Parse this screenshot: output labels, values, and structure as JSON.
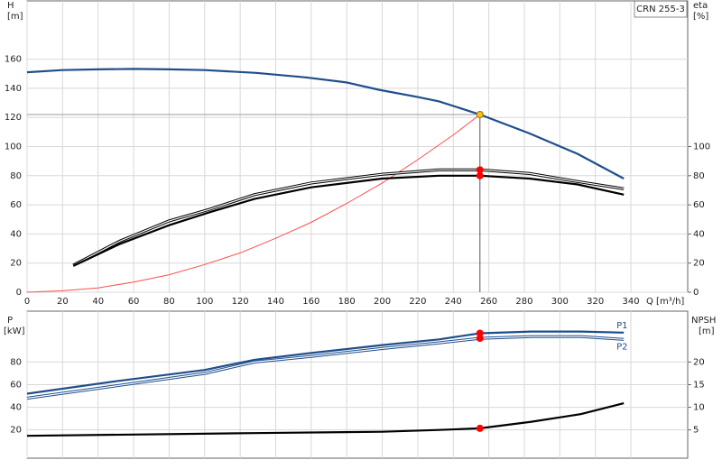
{
  "chart_data": [
    {
      "type": "line",
      "annotation": "CRN 255-3",
      "ylabel": [
        "H",
        "[m]"
      ],
      "y2label": [
        "eta",
        "[%]"
      ],
      "xlabel": "Q [m³/h]",
      "xlim": [
        0,
        372
      ],
      "xticks": [
        0,
        20,
        40,
        60,
        80,
        100,
        120,
        140,
        160,
        180,
        200,
        220,
        240,
        260,
        280,
        300,
        320,
        340
      ],
      "ylim": [
        0,
        200
      ],
      "yticks": [
        0,
        20,
        40,
        60,
        80,
        100,
        120,
        140,
        160
      ],
      "y2lim": [
        0,
        200
      ],
      "y2ticks": [
        0,
        20,
        40,
        60,
        80,
        100
      ],
      "grid": true,
      "show_xtick_labels": true,
      "series": [
        {
          "color": "#999999",
          "style": "thin",
          "x": [
            0,
            255
          ],
          "values": [
            122,
            122
          ]
        },
        {
          "color": "#555555",
          "style": "thin",
          "x": [
            255,
            255
          ],
          "values": [
            122,
            0
          ]
        },
        {
          "color": "#ff4d4d",
          "style": "thin",
          "x": [
            0,
            20,
            40,
            60,
            80,
            100,
            120,
            140,
            160,
            180,
            200,
            220,
            240,
            255
          ],
          "values": [
            0,
            1,
            3,
            7,
            12,
            19,
            27,
            37,
            48,
            61,
            75,
            91,
            108,
            122
          ]
        },
        {
          "color": "#1f4e8c",
          "style": "thick",
          "x": [
            0,
            20,
            40,
            60,
            80,
            100,
            129,
            157,
            180,
            198,
            220,
            232,
            255,
            283,
            310,
            336
          ],
          "values": [
            151,
            152.5,
            153,
            153.3,
            153,
            152.5,
            150.6,
            147.5,
            144,
            139,
            134,
            131,
            122,
            109,
            95,
            78
          ]
        },
        {
          "color": "#000000",
          "style": "double",
          "axis": "y2",
          "x": [
            26,
            52,
            80,
            103,
            128,
            160,
            200,
            232,
            255,
            283,
            310,
            336
          ],
          "values": [
            18.5,
            35,
            49,
            57,
            67,
            75,
            81,
            84,
            84,
            81.5,
            76,
            71
          ]
        },
        {
          "color": "#000000",
          "style": "thick",
          "axis": "y2",
          "x": [
            26,
            52,
            80,
            103,
            128,
            160,
            200,
            232,
            255,
            283,
            310,
            336
          ],
          "values": [
            18,
            33,
            46,
            55,
            64,
            72,
            78,
            80,
            80,
            78,
            74,
            67
          ]
        }
      ],
      "points": [
        {
          "x": 255,
          "y": 122,
          "color": "#f5c518"
        },
        {
          "x": 255,
          "y": 84,
          "color": "#ff0000",
          "axis": "y2"
        },
        {
          "x": 255,
          "y": 80,
          "color": "#ff0000",
          "axis": "y2"
        }
      ]
    },
    {
      "type": "line",
      "ylabel": [
        "P",
        "[kW]"
      ],
      "y2label": [
        "NPSH",
        "[m]"
      ],
      "xlim": [
        0,
        372
      ],
      "xticks": [
        0,
        20,
        40,
        60,
        80,
        100,
        120,
        140,
        160,
        180,
        200,
        220,
        240,
        260,
        280,
        300,
        320,
        340
      ],
      "ylim": [
        -5,
        125
      ],
      "yticks": [
        20,
        40,
        60,
        80
      ],
      "y2lim": [
        -1.25,
        31.25
      ],
      "y2ticks": [
        5,
        10,
        15,
        20
      ],
      "grid": true,
      "show_xtick_labels": false,
      "series": [
        {
          "name": "P1",
          "color": "#1f4e8c",
          "style": "thick",
          "x": [
            0,
            50,
            100,
            128,
            160,
            200,
            232,
            255,
            284,
            312,
            336
          ],
          "values": [
            52,
            63,
            73,
            82,
            88,
            95,
            100,
            105.5,
            107,
            107,
            106
          ]
        },
        {
          "name": "P2",
          "color": "#1f4e8c",
          "style": "double",
          "x": [
            0,
            50,
            100,
            128,
            160,
            200,
            232,
            255,
            284,
            312,
            336
          ],
          "values": [
            48,
            59,
            70,
            80,
            85,
            92,
            97,
            101,
            102.5,
            102.5,
            100
          ]
        },
        {
          "color": "#000000",
          "style": "thick",
          "axis": "y2",
          "x": [
            0,
            128,
            200,
            232,
            255,
            284,
            312,
            336
          ],
          "values": [
            3.7,
            4.3,
            4.6,
            5,
            5.35,
            6.8,
            8.5,
            10.9
          ]
        }
      ],
      "points": [
        {
          "x": 255,
          "y": 105.5,
          "color": "#ff0000"
        },
        {
          "x": 255,
          "y": 101,
          "color": "#ff0000"
        },
        {
          "x": 255,
          "y": 5.35,
          "color": "#ff0000",
          "axis": "y2"
        }
      ]
    }
  ]
}
